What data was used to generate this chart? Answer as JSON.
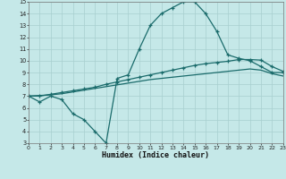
{
  "xlabel": "Humidex (Indice chaleur)",
  "bg_color": "#c5e8e8",
  "grid_color": "#a8cfcf",
  "line_color": "#1a6b6b",
  "xlim": [
    0,
    23
  ],
  "ylim": [
    3,
    15
  ],
  "xticks": [
    0,
    1,
    2,
    3,
    4,
    5,
    6,
    7,
    8,
    9,
    10,
    11,
    12,
    13,
    14,
    15,
    16,
    17,
    18,
    19,
    20,
    21,
    22,
    23
  ],
  "yticks": [
    3,
    4,
    5,
    6,
    7,
    8,
    9,
    10,
    11,
    12,
    13,
    14,
    15
  ],
  "line1_x": [
    0,
    1,
    2,
    3,
    4,
    5,
    6,
    7,
    8,
    9,
    10,
    11,
    12,
    13,
    14,
    15,
    16,
    17,
    18,
    19,
    20,
    21,
    22,
    23
  ],
  "line1_y": [
    7.0,
    6.5,
    7.0,
    6.7,
    5.5,
    5.0,
    4.0,
    3.0,
    8.5,
    8.8,
    11.0,
    13.0,
    14.0,
    14.5,
    15.0,
    15.0,
    14.0,
    12.5,
    10.5,
    10.2,
    10.0,
    9.5,
    9.0,
    9.0
  ],
  "line2_x": [
    0,
    1,
    2,
    3,
    4,
    5,
    6,
    7,
    8,
    9,
    10,
    11,
    12,
    13,
    14,
    15,
    16,
    17,
    18,
    19,
    20,
    21,
    22,
    23
  ],
  "line2_y": [
    7.0,
    7.0,
    7.15,
    7.3,
    7.45,
    7.6,
    7.75,
    8.0,
    8.2,
    8.4,
    8.6,
    8.8,
    9.0,
    9.2,
    9.4,
    9.6,
    9.75,
    9.85,
    9.95,
    10.1,
    10.1,
    10.05,
    9.5,
    9.1
  ],
  "line3_x": [
    0,
    1,
    2,
    3,
    4,
    5,
    6,
    7,
    8,
    9,
    10,
    11,
    12,
    13,
    14,
    15,
    16,
    17,
    18,
    19,
    20,
    21,
    22,
    23
  ],
  "line3_y": [
    7.0,
    7.05,
    7.1,
    7.2,
    7.35,
    7.5,
    7.65,
    7.8,
    7.95,
    8.1,
    8.25,
    8.4,
    8.5,
    8.6,
    8.7,
    8.8,
    8.9,
    9.0,
    9.1,
    9.2,
    9.3,
    9.2,
    8.9,
    8.7
  ]
}
